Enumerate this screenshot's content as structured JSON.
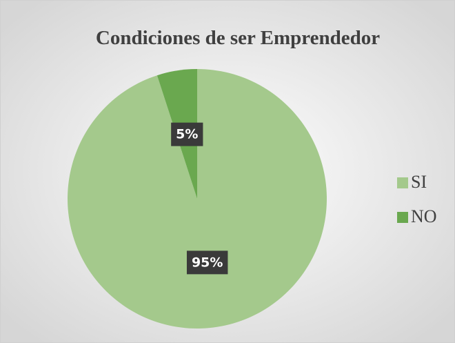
{
  "chart_data": {
    "type": "pie",
    "title": "Condiciones de ser Emprendedor",
    "categories": [
      "SI",
      "NO"
    ],
    "values": [
      95,
      5
    ],
    "value_labels": [
      "95%",
      "5%"
    ],
    "colors": [
      "#a4c98c",
      "#6aa84f"
    ],
    "legend": "right"
  }
}
